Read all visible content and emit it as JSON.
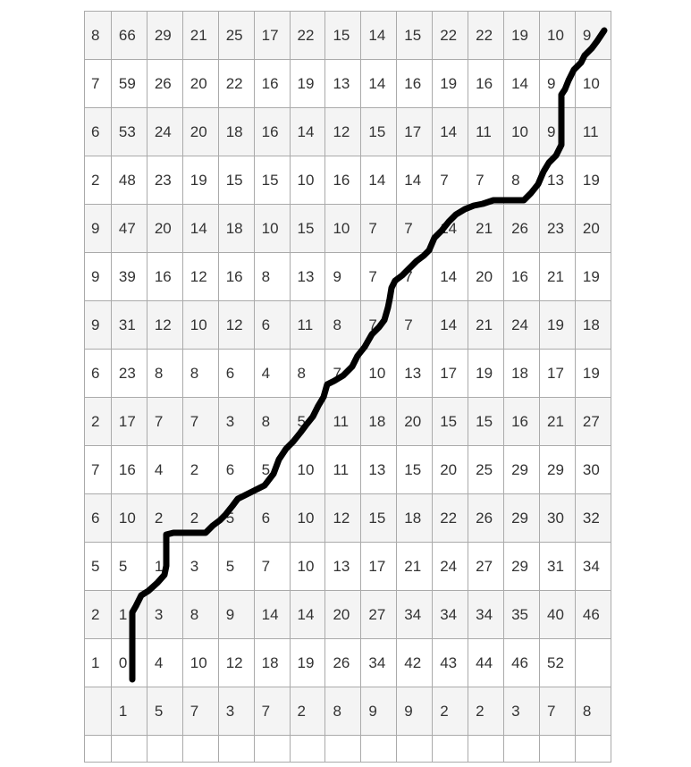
{
  "seq_a_desc": [
    "8",
    "7",
    "6",
    "2",
    "9",
    "9",
    "9",
    "6",
    "2",
    "7",
    "6",
    "5",
    "2",
    "1"
  ],
  "seq_b": [
    "1",
    "5",
    "7",
    "3",
    "7",
    "2",
    "8",
    "9",
    "9",
    "2",
    "2",
    "3",
    "7",
    "8"
  ],
  "cost_matrix": [
    [
      "66",
      "29",
      "21",
      "25",
      "17",
      "22",
      "15",
      "14",
      "15",
      "22",
      "22",
      "19",
      "10",
      "9"
    ],
    [
      "59",
      "26",
      "20",
      "22",
      "16",
      "19",
      "13",
      "14",
      "16",
      "19",
      "16",
      "14",
      "9",
      "10"
    ],
    [
      "53",
      "24",
      "20",
      "18",
      "16",
      "14",
      "12",
      "15",
      "17",
      "14",
      "11",
      "10",
      "9",
      "11"
    ],
    [
      "48",
      "23",
      "19",
      "15",
      "15",
      "10",
      "16",
      "14",
      "14",
      "7",
      "7",
      "8",
      "13",
      "19"
    ],
    [
      "47",
      "20",
      "14",
      "18",
      "10",
      "15",
      "10",
      "7",
      "7",
      "14",
      "21",
      "26",
      "23",
      "20"
    ],
    [
      "39",
      "16",
      "12",
      "16",
      "8",
      "13",
      "9",
      "7",
      "7",
      "14",
      "20",
      "16",
      "21",
      "19"
    ],
    [
      "31",
      "12",
      "10",
      "12",
      "6",
      "11",
      "8",
      "7",
      "7",
      "14",
      "21",
      "24",
      "19",
      "18"
    ],
    [
      "23",
      "8",
      "8",
      "6",
      "4",
      "8",
      "7",
      "10",
      "13",
      "17",
      "19",
      "18",
      "17",
      "19"
    ],
    [
      "17",
      "7",
      "7",
      "3",
      "8",
      "5",
      "11",
      "18",
      "20",
      "15",
      "15",
      "16",
      "21",
      "27"
    ],
    [
      "16",
      "4",
      "2",
      "6",
      "5",
      "10",
      "11",
      "13",
      "15",
      "20",
      "25",
      "29",
      "29",
      "30"
    ],
    [
      "10",
      "2",
      "2",
      "5",
      "6",
      "10",
      "12",
      "15",
      "18",
      "22",
      "26",
      "29",
      "30",
      "32"
    ],
    [
      "5",
      "1",
      "3",
      "5",
      "7",
      "10",
      "13",
      "17",
      "21",
      "24",
      "27",
      "29",
      "31",
      "34"
    ],
    [
      "1",
      "3",
      "8",
      "9",
      "14",
      "14",
      "20",
      "27",
      "34",
      "34",
      "34",
      "35",
      "40",
      "46"
    ],
    [
      "0",
      "4",
      "10",
      "12",
      "18",
      "19",
      "26",
      "34",
      "42",
      "43",
      "44",
      "46",
      "52",
      ""
    ]
  ],
  "colors": {
    "path": "#000000",
    "grid_line": "#aaaaaa",
    "stripe": "#f4f4f4",
    "text": "#333333"
  }
}
